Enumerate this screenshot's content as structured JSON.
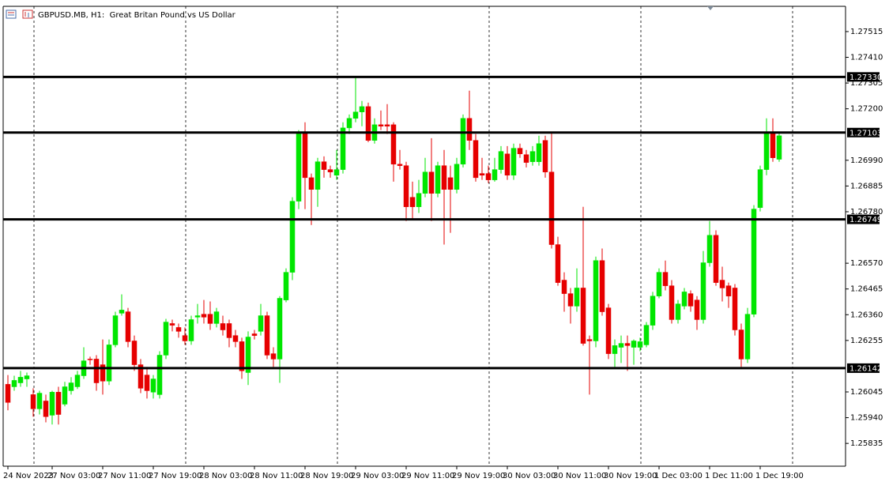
{
  "chart_data": {
    "type": "candlestick",
    "title": "GBPUSD.MB, H1:  Great Britan Pound vs US Dollar",
    "categories": [
      "24 Nov 2023",
      null,
      null,
      null,
      null,
      null,
      null,
      "27 Nov 03:00",
      null,
      null,
      null,
      null,
      null,
      null,
      null,
      "27 Nov 11:00",
      null,
      null,
      null,
      null,
      null,
      null,
      null,
      "27 Nov 19:00",
      null,
      null,
      null,
      null,
      null,
      null,
      null,
      "28 Nov 03:00",
      null,
      null,
      null,
      null,
      null,
      null,
      null,
      "28 Nov 11:00",
      null,
      null,
      null,
      null,
      null,
      null,
      null,
      "28 Nov 19:00",
      null,
      null,
      null,
      null,
      null,
      null,
      null,
      "29 Nov 03:00",
      null,
      null,
      null,
      null,
      null,
      null,
      null,
      "29 Nov 11:00",
      null,
      null,
      null,
      null,
      null,
      null,
      null,
      "29 Nov 19:00",
      null,
      null,
      null,
      null,
      null,
      null,
      null,
      "30 Nov 03:00",
      null,
      null,
      null,
      null,
      null,
      null,
      null,
      "30 Nov 11:00",
      null,
      null,
      null,
      null,
      null,
      null,
      null,
      "30 Nov 19:00",
      null,
      null,
      null,
      null,
      null,
      null,
      null,
      "1 Dec 03:00",
      null,
      null,
      null,
      null,
      null,
      null,
      null,
      "1 Dec 11:00",
      null,
      null,
      null,
      null,
      null,
      null,
      null,
      "1 Dec 19:00",
      null,
      null,
      null
    ],
    "open": [
      1.26076,
      1.26066,
      1.26082,
      1.26098,
      1.26034,
      1.25976,
      1.26008,
      1.2595,
      1.26044,
      1.25995,
      1.2605,
      1.26066,
      1.26111,
      1.26179,
      1.26179,
      1.26156,
      1.26089,
      1.26237,
      1.26366,
      1.26372,
      1.26253,
      1.26156,
      1.26114,
      1.26044,
      1.26034,
      1.26195,
      1.26324,
      1.26308,
      1.26275,
      1.26253,
      1.2635,
      1.26362,
      1.26362,
      1.26324,
      1.26324,
      1.26324,
      1.26275,
      1.2625,
      1.26124,
      1.26282,
      1.26292,
      1.26356,
      1.26201,
      1.26179,
      1.2642,
      1.26533,
      1.26823,
      1.27103,
      1.26919,
      1.26871,
      1.26984,
      1.26952,
      1.26929,
      1.26952,
      1.27122,
      1.27161,
      1.27187,
      1.27209,
      1.27071,
      1.27135,
      1.27135,
      1.27135,
      1.26974,
      1.26968,
      1.26839,
      1.268,
      1.26855,
      1.26942,
      1.26855,
      1.26968,
      1.26919,
      1.26871,
      1.26974,
      1.27161,
      1.27071,
      1.26936,
      1.26936,
      1.2691,
      1.26952,
      1.27016,
      1.26929,
      1.27039,
      1.27013,
      1.26984,
      1.26984,
      1.27071,
      1.26942,
      1.26646,
      1.26501,
      1.26446,
      1.26395,
      1.26469,
      1.26259,
      1.26253,
      1.26581,
      1.26388,
      1.26201,
      1.26227,
      1.26243,
      1.26227,
      1.26227,
      1.26237,
      1.26317,
      1.26436,
      1.26533,
      1.26478,
      1.2634,
      1.26395,
      1.26446,
      1.2642,
      1.2634,
      1.26572,
      1.26684,
      1.26501,
      1.26478,
      1.26469,
      1.26298,
      1.26179,
      1.26362,
      1.26797,
      1.26952,
      1.27103,
      1.26994
    ],
    "high": [
      1.26114,
      1.26111,
      1.26131,
      1.26124,
      1.2606,
      1.2605,
      1.26034,
      1.2605,
      1.26066,
      1.26086,
      1.26105,
      1.26131,
      1.26227,
      1.26189,
      1.26195,
      1.26259,
      1.26259,
      1.26372,
      1.26443,
      1.26388,
      1.26275,
      1.26179,
      1.26147,
      1.26114,
      1.26211,
      1.26343,
      1.2634,
      1.26324,
      1.26308,
      1.26356,
      1.26404,
      1.2642,
      1.26414,
      1.26388,
      1.26356,
      1.2634,
      1.26298,
      1.26266,
      1.26292,
      1.26298,
      1.26404,
      1.26372,
      1.26227,
      1.26436,
      1.26549,
      1.26839,
      1.27113,
      1.27145,
      1.26936,
      1.27,
      1.27006,
      1.26968,
      1.27032,
      1.27145,
      1.27177,
      1.27328,
      1.27232,
      1.27225,
      1.27161,
      1.27193,
      1.27219,
      1.27145,
      1.27032,
      1.26984,
      1.26903,
      1.2691,
      1.27,
      1.2708,
      1.26984,
      1.27032,
      1.26968,
      1.27,
      1.27177,
      1.27274,
      1.27097,
      1.27,
      1.26968,
      1.27,
      1.27048,
      1.27048,
      1.27058,
      1.27058,
      1.27032,
      1.27048,
      1.2709,
      1.2709,
      1.27103,
      1.26678,
      1.26533,
      1.26469,
      1.26549,
      1.268,
      1.26275,
      1.26597,
      1.2663,
      1.26404,
      1.26259,
      1.26275,
      1.26275,
      1.26259,
      1.26266,
      1.2633,
      1.26453,
      1.26549,
      1.26581,
      1.26501,
      1.2642,
      1.26469,
      1.26459,
      1.26436,
      1.2662,
      1.26742,
      1.26704,
      1.26556,
      1.26491,
      1.26485,
      1.26324,
      1.26388,
      1.26807,
      1.26968,
      1.27161,
      1.27161,
      1.27103
    ],
    "low": [
      1.2597,
      1.2605,
      1.26066,
      1.26066,
      1.25944,
      1.25953,
      1.25921,
      1.25912,
      1.25912,
      1.25986,
      1.26034,
      1.26057,
      1.26098,
      1.26156,
      1.2605,
      1.26034,
      1.26073,
      1.26227,
      1.26356,
      1.26227,
      1.26131,
      1.2604,
      1.26018,
      1.26018,
      1.26018,
      1.26179,
      1.26292,
      1.26266,
      1.26237,
      1.26237,
      1.26324,
      1.26324,
      1.26298,
      1.26308,
      1.26275,
      1.26227,
      1.26227,
      1.26098,
      1.26073,
      1.26259,
      1.26275,
      1.26179,
      1.26147,
      1.26082,
      1.26411,
      1.26501,
      1.26791,
      1.26791,
      1.26726,
      1.268,
      1.26919,
      1.26919,
      1.2691,
      1.26936,
      1.27097,
      1.27145,
      1.27129,
      1.27064,
      1.27058,
      1.27113,
      1.27097,
      1.26903,
      1.26952,
      1.26742,
      1.26749,
      1.26775,
      1.26839,
      1.26742,
      1.26839,
      1.26646,
      1.26694,
      1.26855,
      1.26961,
      1.27032,
      1.26903,
      1.2691,
      1.26897,
      1.26903,
      1.26936,
      1.2691,
      1.2691,
      1.27,
      1.26961,
      1.26968,
      1.26968,
      1.26919,
      1.2663,
      1.26478,
      1.26372,
      1.26324,
      1.26372,
      1.26234,
      1.26034,
      1.26227,
      1.26356,
      1.26179,
      1.26147,
      1.26163,
      1.26131,
      1.26156,
      1.26211,
      1.26227,
      1.26298,
      1.26427,
      1.26459,
      1.26324,
      1.26324,
      1.26382,
      1.26372,
      1.26298,
      1.26324,
      1.26556,
      1.26478,
      1.26414,
      1.26388,
      1.26275,
      1.26147,
      1.26163,
      1.2635,
      1.26781,
      1.26929,
      1.26984,
      1.26984
    ],
    "close": [
      1.26002,
      1.26092,
      1.26105,
      1.26111,
      1.25976,
      1.2604,
      1.25944,
      1.26044,
      1.25953,
      1.26066,
      1.26082,
      1.26114,
      1.26172,
      1.26176,
      1.26082,
      1.26089,
      1.26237,
      1.26356,
      1.26379,
      1.2625,
      1.26156,
      1.2606,
      1.2605,
      1.26098,
      1.26195,
      1.2633,
      1.26317,
      1.26292,
      1.26253,
      1.2634,
      1.26356,
      1.2635,
      1.26324,
      1.26372,
      1.26298,
      1.26266,
      1.2625,
      1.26131,
      1.26269,
      1.26275,
      1.26356,
      1.26195,
      1.26179,
      1.26427,
      1.26533,
      1.26823,
      1.27103,
      1.26919,
      1.26871,
      1.26984,
      1.26952,
      1.26942,
      1.26952,
      1.27122,
      1.27161,
      1.27187,
      1.27209,
      1.27071,
      1.27135,
      1.27129,
      1.27129,
      1.26974,
      1.26968,
      1.268,
      1.268,
      1.26855,
      1.26942,
      1.26855,
      1.26968,
      1.26871,
      1.26871,
      1.26974,
      1.27161,
      1.27071,
      1.26919,
      1.26929,
      1.2691,
      1.26952,
      1.27026,
      1.26929,
      1.27039,
      1.27016,
      1.26981,
      1.27026,
      1.27058,
      1.26942,
      1.26646,
      1.26491,
      1.26446,
      1.26395,
      1.26469,
      1.26243,
      1.26253,
      1.26581,
      1.26372,
      1.26201,
      1.26234,
      1.26243,
      1.26234,
      1.26253,
      1.2625,
      1.26317,
      1.26436,
      1.26533,
      1.26478,
      1.2634,
      1.26404,
      1.26453,
      1.26395,
      1.2634,
      1.26572,
      1.26684,
      1.26491,
      1.26469,
      1.26436,
      1.26298,
      1.26179,
      1.26362,
      1.26791,
      1.26952,
      1.27103,
      1.27,
      1.2709
    ],
    "up_color": "#00e600",
    "down_color": "#e60000",
    "grid": true,
    "ylim": [
      1.25742,
      1.27618
    ],
    "yticks": [
      1.27515,
      {
        "value": 1.2741,
        "label": "1.27410"
      },
      1.27305,
      {
        "value": 1.272,
        "label": "1.27200"
      },
      {
        "value": 1.2699,
        "label": "1.26990"
      },
      1.26885,
      {
        "value": 1.2678,
        "label": "1.26780"
      },
      {
        "value": 1.2657,
        "label": "1.26570"
      },
      1.26465,
      {
        "value": 1.2636,
        "label": "1.26360"
      },
      1.26255,
      1.26045,
      {
        "value": 1.2594,
        "label": "1.25940"
      },
      1.25835
    ],
    "levels": [
      {
        "value": 1.2733,
        "label": "1.27330"
      },
      1.27103,
      1.26749,
      1.26142
    ]
  }
}
